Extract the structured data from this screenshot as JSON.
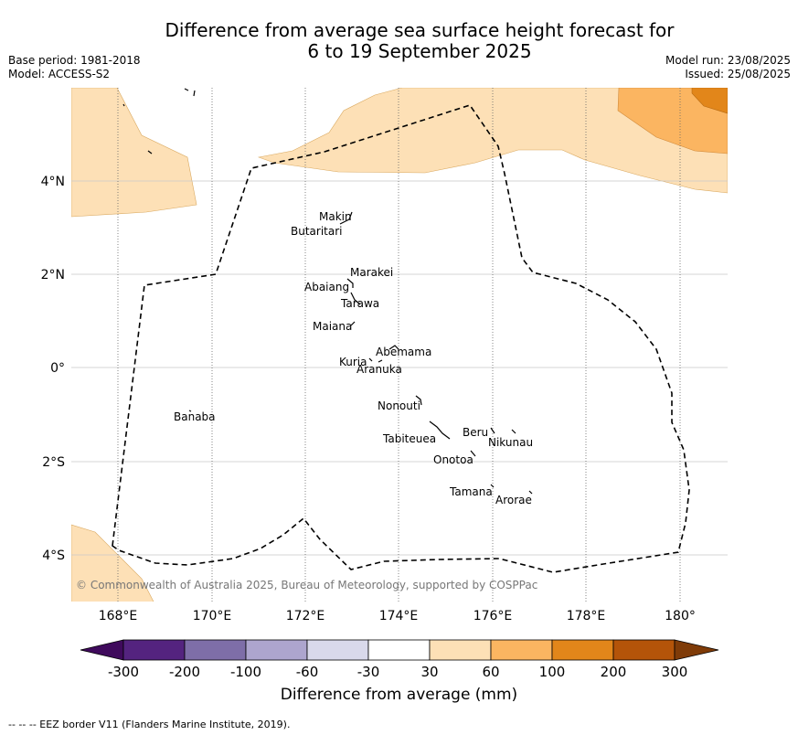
{
  "header": {
    "title_line1": "Difference from average sea surface height forecast for",
    "title_line2": "6 to 19 September 2025",
    "base_period": "Base period: 1981-2018",
    "model": "Model: ACCESS-S2",
    "model_run": "Model run: 23/08/2025",
    "issued": "Issued: 25/08/2025"
  },
  "map": {
    "lat_labels": [
      "4°N",
      "2°N",
      "0°",
      "2°S",
      "4°S"
    ],
    "lon_labels": [
      "168°E",
      "170°E",
      "172°E",
      "174°E",
      "176°E",
      "178°E",
      "180°"
    ],
    "copyright": "© Commonwealth of Australia 2025, Bureau of Meteorology, supported by COSPPac",
    "places": [
      {
        "name": "Makin"
      },
      {
        "name": "Butaritari"
      },
      {
        "name": "Marakei"
      },
      {
        "name": "Abaiang"
      },
      {
        "name": "Tarawa"
      },
      {
        "name": "Maiana"
      },
      {
        "name": "Abemama"
      },
      {
        "name": "Kuria"
      },
      {
        "name": "Aranuka"
      },
      {
        "name": "Banaba"
      },
      {
        "name": "Nonouti"
      },
      {
        "name": "Beru"
      },
      {
        "name": "Tabiteuea"
      },
      {
        "name": "Nikunau"
      },
      {
        "name": "Onotoa"
      },
      {
        "name": "Tamana"
      },
      {
        "name": "Arorae"
      }
    ]
  },
  "colorbar": {
    "tick_labels": [
      "-300",
      "-200",
      "-100",
      "-60",
      "-30",
      "30",
      "60",
      "100",
      "200",
      "300"
    ],
    "colors": [
      "#3f0a5c",
      "#54237f",
      "#7e6ea8",
      "#ada5ce",
      "#d9d9eb",
      "#ffffff",
      "#fde0b6",
      "#fbb561",
      "#e2861a",
      "#b45409",
      "#7f3b08"
    ],
    "title": "Difference from average (mm)"
  },
  "footer": "--  --  -- EEZ border V11 (Flanders Marine Institute, 2019)."
}
